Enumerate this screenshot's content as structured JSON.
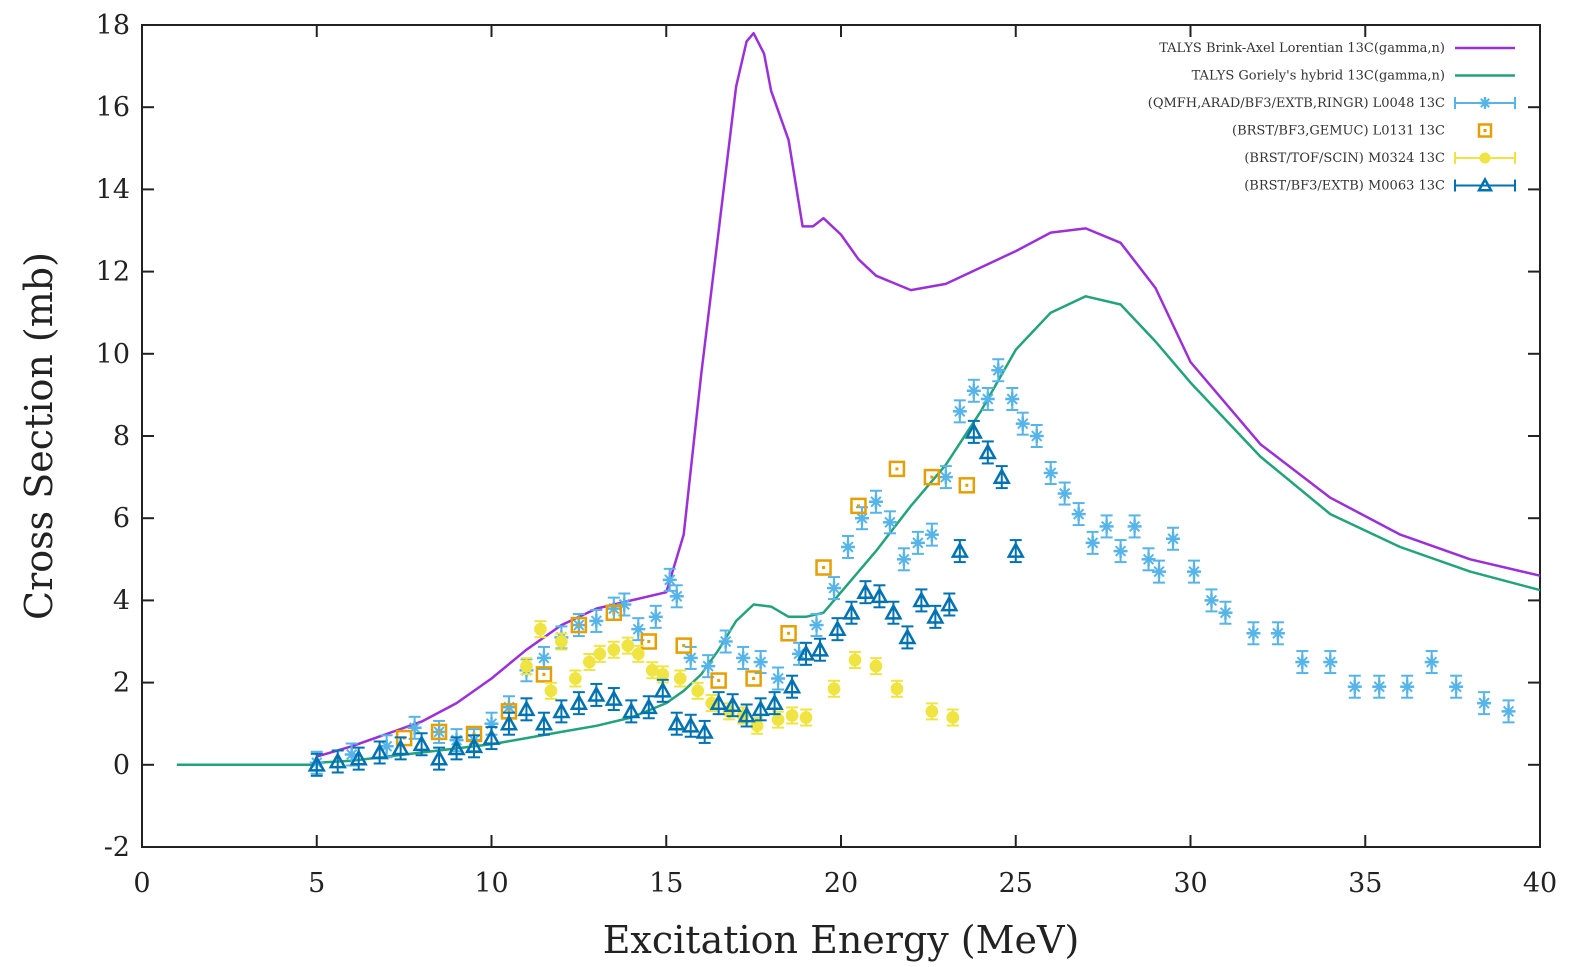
{
  "chart_data": {
    "type": "scatter",
    "xlabel": "Excitation Energy (MeV)",
    "ylabel": "Cross Section (mb)",
    "xlim": [
      0,
      40
    ],
    "ylim": [
      -2,
      18
    ],
    "xticks": [
      0,
      5,
      10,
      15,
      20,
      25,
      30,
      35,
      40
    ],
    "yticks": [
      -2,
      0,
      2,
      4,
      6,
      8,
      10,
      12,
      14,
      16,
      18
    ],
    "grid": false,
    "legend_position": "top-right",
    "series": [
      {
        "name": "TALYS Brink-Axel Lorentian 13C(gamma,n)",
        "style": "line",
        "color": "#9b30d9",
        "x": [
          1,
          4.9,
          5,
          6,
          7,
          8,
          9,
          10,
          11,
          12,
          13,
          14,
          15,
          15.5,
          16,
          16.5,
          17,
          17.3,
          17.5,
          17.8,
          18,
          18.5,
          18.9,
          19.2,
          19.5,
          20,
          20.5,
          21,
          22,
          23,
          24,
          25,
          26,
          27,
          28,
          29,
          30,
          32,
          34,
          36,
          38,
          40
        ],
        "y": [
          0,
          0,
          0.2,
          0.45,
          0.75,
          1.05,
          1.5,
          2.1,
          2.8,
          3.4,
          3.8,
          4.0,
          4.2,
          5.6,
          9.5,
          13.0,
          16.5,
          17.6,
          17.8,
          17.3,
          16.4,
          15.2,
          13.1,
          13.1,
          13.3,
          12.9,
          12.3,
          11.9,
          11.55,
          11.7,
          12.1,
          12.5,
          12.95,
          13.05,
          12.7,
          11.6,
          9.8,
          7.8,
          6.5,
          5.6,
          5.0,
          4.6
        ]
      },
      {
        "name": "TALYS Goriely's hybrid  13C(gamma,n)",
        "style": "line",
        "color": "#22a37a",
        "x": [
          1,
          4.9,
          5,
          6,
          7,
          8,
          9,
          10,
          11,
          12,
          13,
          14,
          15,
          15.5,
          16,
          16.5,
          17,
          17.5,
          18,
          18.5,
          19,
          19.5,
          20,
          21,
          22,
          23,
          24,
          25,
          26,
          27,
          28,
          29,
          30,
          32,
          34,
          36,
          38,
          40
        ],
        "y": [
          0,
          0,
          0.05,
          0.1,
          0.2,
          0.3,
          0.4,
          0.5,
          0.65,
          0.8,
          0.95,
          1.15,
          1.5,
          1.8,
          2.2,
          2.8,
          3.5,
          3.9,
          3.85,
          3.6,
          3.6,
          3.7,
          4.2,
          5.2,
          6.3,
          7.3,
          8.6,
          10.1,
          11.0,
          11.4,
          11.2,
          10.3,
          9.3,
          7.5,
          6.1,
          5.3,
          4.7,
          4.25
        ]
      },
      {
        "name": "(QMFH,ARAD/BF3/EXTB,RINGR) L0048 13C",
        "style": "star",
        "color": "#56b4e9",
        "x": [
          5,
          6,
          7,
          7.8,
          8.5,
          9,
          9.5,
          10,
          10.5,
          11,
          11.5,
          12,
          12.5,
          13,
          13.5,
          13.8,
          14.2,
          14.7,
          15.1,
          15.3,
          15.7,
          16.2,
          16.7,
          17.2,
          17.7,
          18.2,
          18.8,
          19.3,
          19.8,
          20.2,
          20.6,
          21.0,
          21.4,
          21.8,
          22.2,
          22.6,
          23.0,
          23.4,
          23.8,
          24.2,
          24.5,
          24.9,
          25.2,
          25.6,
          26.0,
          26.4,
          26.8,
          27.2,
          27.6,
          28.0,
          28.4,
          28.8,
          29.1,
          29.5,
          30.1,
          30.6,
          31.0,
          31.8,
          32.5,
          33.2,
          34.0,
          34.7,
          35.4,
          36.2,
          36.9,
          37.6,
          38.4,
          39.1
        ],
        "y": [
          0.05,
          0.25,
          0.45,
          0.9,
          0.8,
          0.6,
          0.6,
          1.0,
          1.4,
          2.3,
          2.6,
          3.1,
          3.4,
          3.5,
          3.8,
          3.9,
          3.3,
          3.6,
          4.5,
          4.1,
          2.6,
          2.4,
          3.0,
          2.6,
          2.5,
          2.1,
          2.7,
          3.4,
          4.3,
          5.3,
          6.0,
          6.4,
          5.9,
          5.0,
          5.4,
          5.6,
          7.0,
          8.6,
          9.1,
          8.9,
          9.6,
          8.9,
          8.3,
          8.0,
          7.1,
          6.6,
          6.1,
          5.4,
          5.8,
          5.2,
          5.8,
          5.0,
          4.7,
          5.5,
          4.7,
          4.0,
          3.7,
          3.2,
          3.2,
          2.5,
          2.5,
          1.9,
          1.9,
          1.9,
          2.5,
          1.9,
          1.5,
          1.3
        ]
      },
      {
        "name": "(BRST/BF3,GEMUC) L0131 13C",
        "style": "square",
        "color": "#e69f00",
        "x": [
          7.5,
          8.5,
          9.5,
          10.5,
          11.5,
          12.5,
          13.5,
          14.5,
          15.5,
          16.5,
          17.5,
          18.5,
          19.5,
          20.5,
          21.6,
          22.6,
          23.6
        ],
        "y": [
          0.65,
          0.8,
          0.75,
          1.3,
          2.2,
          3.4,
          3.7,
          3.0,
          2.9,
          2.05,
          2.1,
          3.2,
          4.8,
          6.3,
          7.2,
          7.0,
          6.8
        ]
      },
      {
        "name": "(BRST/TOF/SCIN) M0324 13C",
        "style": "circle",
        "color": "#f0e442",
        "x": [
          11.0,
          11.4,
          11.7,
          12.0,
          12.4,
          12.8,
          13.1,
          13.5,
          13.9,
          14.2,
          14.6,
          14.9,
          15.4,
          15.9,
          16.3,
          16.8,
          17.2,
          17.6,
          18.2,
          18.6,
          19.0,
          19.8,
          20.4,
          21.0,
          21.6,
          22.6,
          23.2
        ],
        "y": [
          2.4,
          3.3,
          1.8,
          3.0,
          2.1,
          2.5,
          2.7,
          2.8,
          2.9,
          2.7,
          2.3,
          2.2,
          2.1,
          1.8,
          1.5,
          1.3,
          1.2,
          0.95,
          1.1,
          1.2,
          1.15,
          1.85,
          2.55,
          2.4,
          1.85,
          1.3,
          1.15
        ]
      },
      {
        "name": "(BRST/BF3/EXTB) M0063 13C",
        "style": "triangle",
        "color": "#0072b2",
        "x": [
          5.0,
          5.6,
          6.2,
          6.8,
          7.4,
          8.0,
          8.5,
          9.0,
          9.5,
          10.0,
          10.5,
          11.0,
          11.5,
          12.0,
          12.5,
          13.0,
          13.5,
          14.0,
          14.5,
          14.9,
          15.3,
          15.7,
          16.1,
          16.5,
          16.9,
          17.3,
          17.7,
          18.1,
          18.6,
          19.0,
          19.4,
          19.9,
          20.3,
          20.7,
          21.1,
          21.5,
          21.9,
          22.3,
          22.7,
          23.1,
          23.4,
          23.8,
          24.2,
          24.6,
          25.0
        ],
        "y": [
          0.0,
          0.08,
          0.15,
          0.3,
          0.4,
          0.5,
          0.15,
          0.4,
          0.45,
          0.65,
          1.0,
          1.35,
          1.0,
          1.3,
          1.5,
          1.7,
          1.6,
          1.3,
          1.4,
          1.8,
          1.0,
          0.95,
          0.8,
          1.5,
          1.45,
          1.2,
          1.35,
          1.5,
          1.9,
          2.7,
          2.8,
          3.3,
          3.7,
          4.2,
          4.1,
          3.7,
          3.1,
          4.0,
          3.6,
          3.9,
          5.2,
          8.1,
          7.6,
          7.0,
          5.2
        ]
      }
    ]
  }
}
